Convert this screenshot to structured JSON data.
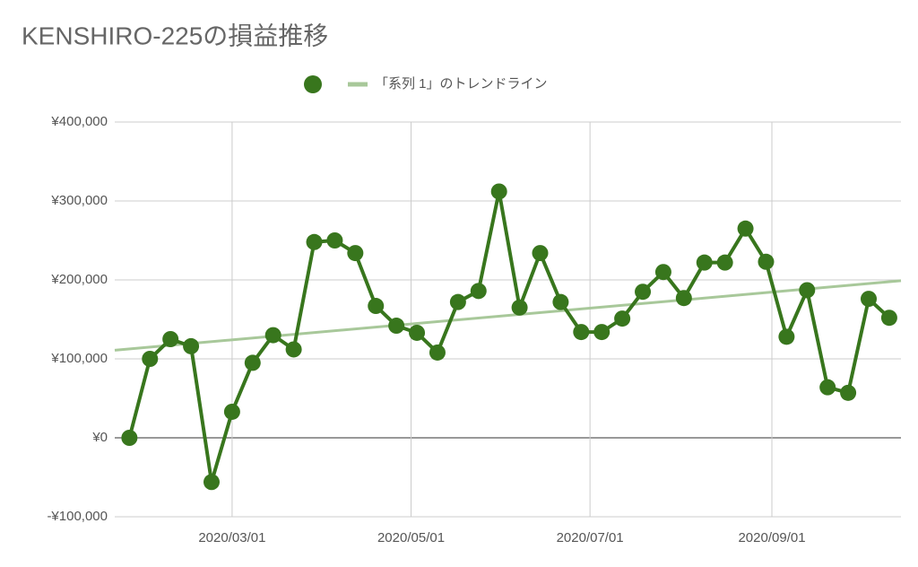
{
  "chart_data": {
    "type": "line",
    "title": "KENSHIRO-225の損益推移",
    "x": [
      "2020-01-26",
      "2020-02-02",
      "2020-02-09",
      "2020-02-16",
      "2020-02-23",
      "2020-03-01",
      "2020-03-08",
      "2020-03-15",
      "2020-03-22",
      "2020-03-29",
      "2020-04-05",
      "2020-04-12",
      "2020-04-19",
      "2020-04-26",
      "2020-05-03",
      "2020-05-10",
      "2020-05-17",
      "2020-05-24",
      "2020-05-31",
      "2020-06-07",
      "2020-06-14",
      "2020-06-21",
      "2020-06-28",
      "2020-07-05",
      "2020-07-12",
      "2020-07-19",
      "2020-07-26",
      "2020-08-02",
      "2020-08-09",
      "2020-08-16",
      "2020-08-23",
      "2020-08-30",
      "2020-09-06",
      "2020-09-13",
      "2020-09-20",
      "2020-09-27",
      "2020-10-04",
      "2020-10-11"
    ],
    "series": [
      {
        "color": "#38761d",
        "values": [
          0,
          100000,
          125000,
          116000,
          -56000,
          33000,
          95000,
          130000,
          112000,
          248000,
          250000,
          234000,
          167000,
          142000,
          133000,
          108000,
          172000,
          186000,
          312000,
          165000,
          234000,
          172000,
          134000,
          134000,
          151000,
          185000,
          210000,
          177000,
          222000,
          222000,
          265000,
          223000,
          128000,
          187000,
          64000,
          57000,
          176000,
          152000
        ]
      }
    ],
    "trendline": {
      "name": "「系列 1」のトレンドライン",
      "color": "#a8c89a",
      "x": [
        "2020-01-21",
        "2020-10-15"
      ],
      "values": [
        111000,
        199000
      ]
    },
    "xlim": [
      "2020-01-21",
      "2020-10-15"
    ],
    "xticks": [
      {
        "value": "2020-03-01",
        "label": "2020/03/01"
      },
      {
        "value": "2020-05-01",
        "label": "2020/05/01"
      },
      {
        "value": "2020-07-01",
        "label": "2020/07/01"
      },
      {
        "value": "2020-09-01",
        "label": "2020/09/01"
      }
    ],
    "ylim": [
      -100000,
      400000
    ],
    "yticks": [
      {
        "value": -100000,
        "label": "-¥100,000"
      },
      {
        "value": 0,
        "label": "¥0"
      },
      {
        "value": 100000,
        "label": "¥100,000"
      },
      {
        "value": 200000,
        "label": "¥200,000"
      },
      {
        "value": 300000,
        "label": "¥300,000"
      },
      {
        "value": 400000,
        "label": "¥400,000"
      }
    ],
    "grid": true
  }
}
